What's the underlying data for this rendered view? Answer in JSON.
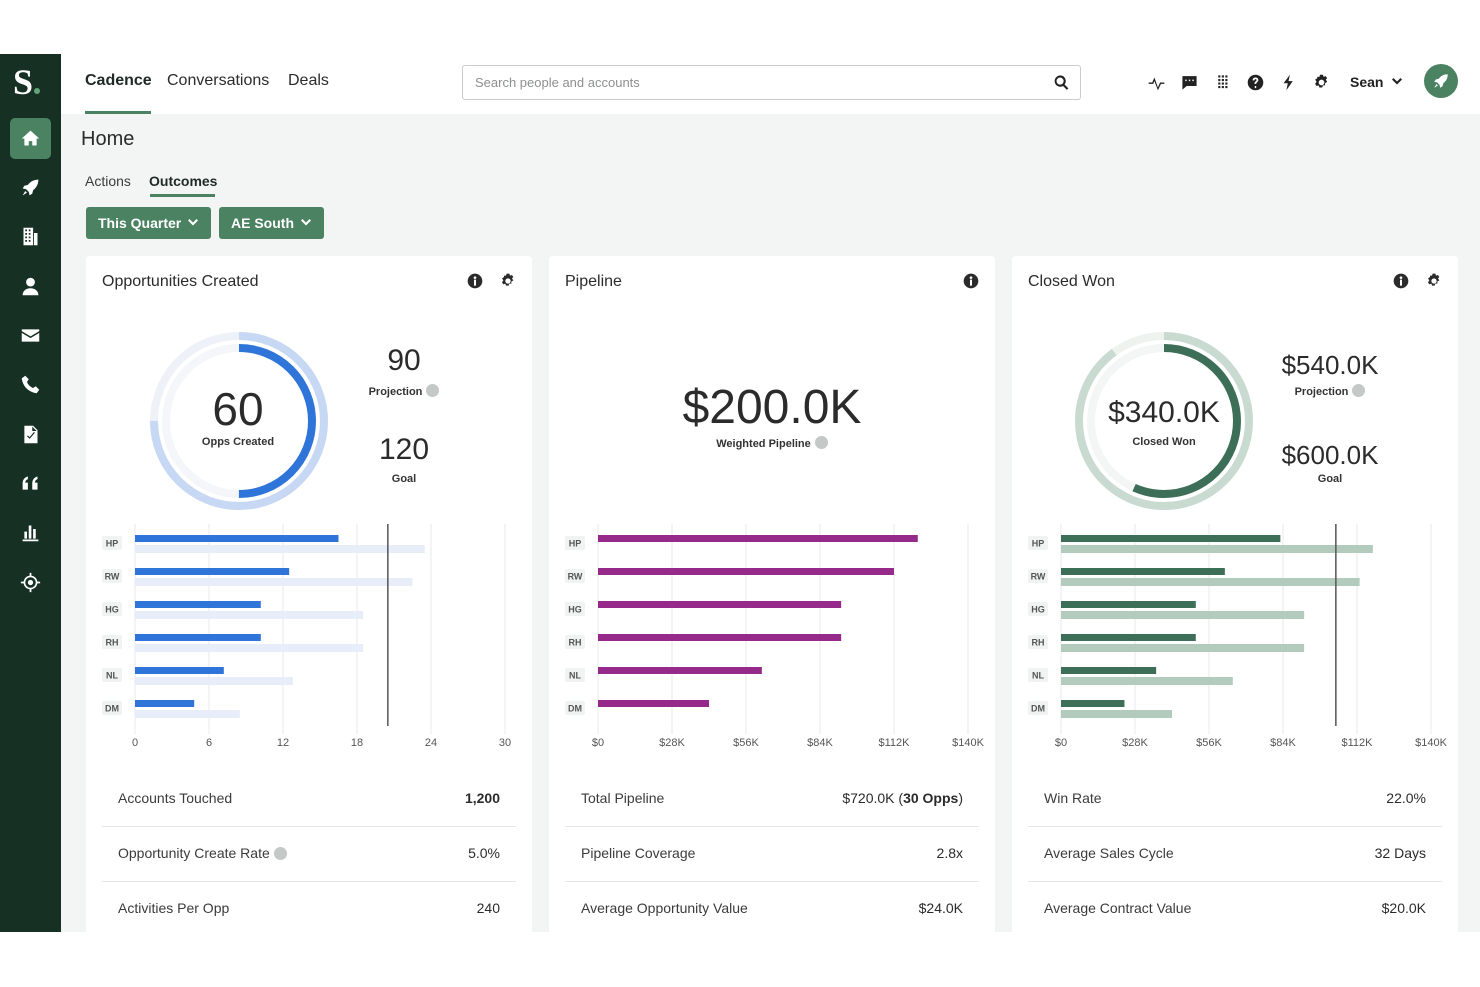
{
  "app": {
    "logo": "S"
  },
  "topnav": {
    "items": [
      "Cadence",
      "Conversations",
      "Deals"
    ],
    "active": "Cadence"
  },
  "search": {
    "placeholder": "Search people and accounts",
    "value": ""
  },
  "user": {
    "name": "Sean"
  },
  "sidebar": {
    "items": [
      "home-icon",
      "rocket-icon",
      "building-icon",
      "person-icon",
      "mail-icon",
      "phone-icon",
      "document-icon",
      "quote-icon",
      "bar-chart-icon",
      "crosshair-icon"
    ],
    "active": "home-icon"
  },
  "page": {
    "title": "Home",
    "subtabs": [
      "Actions",
      "Outcomes"
    ],
    "active_subtab": "Outcomes",
    "filters": [
      "This Quarter",
      "AE South"
    ]
  },
  "colors": {
    "brand": "#4a8262",
    "sidebar": "#163124",
    "blue": "#2f74d8",
    "purple": "#962a8a",
    "green": "#3d6e57"
  },
  "cards": [
    {
      "title": "Opportunities Created",
      "center_value": "60",
      "center_label": "Opps Created",
      "top_value": "90",
      "top_label": "Projection",
      "bottom_value": "120",
      "bottom_label": "Goal",
      "ring_progress": 0.5,
      "ring_projection": 0.75,
      "stats": [
        {
          "label": "Accounts Touched",
          "value": "1,200",
          "bold": true
        },
        {
          "label": "Opportunity Create Rate",
          "value": "5.0%",
          "info": true
        },
        {
          "label": "Activities Per Opp",
          "value": "240"
        }
      ]
    },
    {
      "title": "Pipeline",
      "center_value": "$200.0K",
      "center_label": "Weighted Pipeline",
      "stats": [
        {
          "label": "Total Pipeline",
          "value": "$720.0K (30 Opps)"
        },
        {
          "label": "Pipeline Coverage",
          "value": "2.8x"
        },
        {
          "label": "Average Opportunity Value",
          "value": "$24.0K"
        }
      ]
    },
    {
      "title": "Closed Won",
      "center_value": "$340.0K",
      "center_label": "Closed Won",
      "top_value": "$540.0K",
      "top_label": "Projection",
      "bottom_value": "$600.0K",
      "bottom_label": "Goal",
      "ring_progress": 0.567,
      "ring_projection": 0.9,
      "stats": [
        {
          "label": "Win Rate",
          "value": "22.0%"
        },
        {
          "label": "Average Sales Cycle",
          "value": "32 Days"
        },
        {
          "label": "Average Contract Value",
          "value": "$20.0K"
        }
      ]
    }
  ],
  "chart_data": [
    {
      "type": "bar",
      "orientation": "horizontal",
      "categories": [
        "HP",
        "RW",
        "HG",
        "RH",
        "NL",
        "DM"
      ],
      "series": [
        {
          "values": [
            16.5,
            12.5,
            10.2,
            10.2,
            7.2,
            4.8
          ],
          "color": "#2f74d8"
        },
        {
          "values": [
            23.5,
            22.5,
            18.5,
            18.5,
            12.8,
            8.5
          ],
          "color": "#e7eef9"
        }
      ],
      "xticks": [
        "0",
        "6",
        "12",
        "18",
        "24",
        "30"
      ],
      "xlim": [
        0,
        30
      ],
      "goal_line": 20.5
    },
    {
      "type": "bar",
      "orientation": "horizontal",
      "categories": [
        "HP",
        "RW",
        "HG",
        "RH",
        "NL",
        "DM"
      ],
      "series": [
        {
          "values": [
            121,
            112,
            92,
            92,
            62,
            42
          ],
          "color": "#962a8a"
        }
      ],
      "xticks": [
        "$0",
        "$28K",
        "$56K",
        "$84K",
        "$112K",
        "$140K"
      ],
      "xlim": [
        0,
        140
      ]
    },
    {
      "type": "bar",
      "orientation": "horizontal",
      "categories": [
        "HP",
        "RW",
        "HG",
        "RH",
        "NL",
        "DM"
      ],
      "series": [
        {
          "values": [
            83,
            62,
            51,
            51,
            36,
            24
          ],
          "color": "#3d6e57"
        },
        {
          "values": [
            118,
            113,
            92,
            92,
            65,
            42
          ],
          "color": "#b3cbbd"
        }
      ],
      "xticks": [
        "$0",
        "$28K",
        "$56K",
        "$84K",
        "$112K",
        "$140K"
      ],
      "xlim": [
        0,
        140
      ],
      "goal_line": 104
    }
  ]
}
